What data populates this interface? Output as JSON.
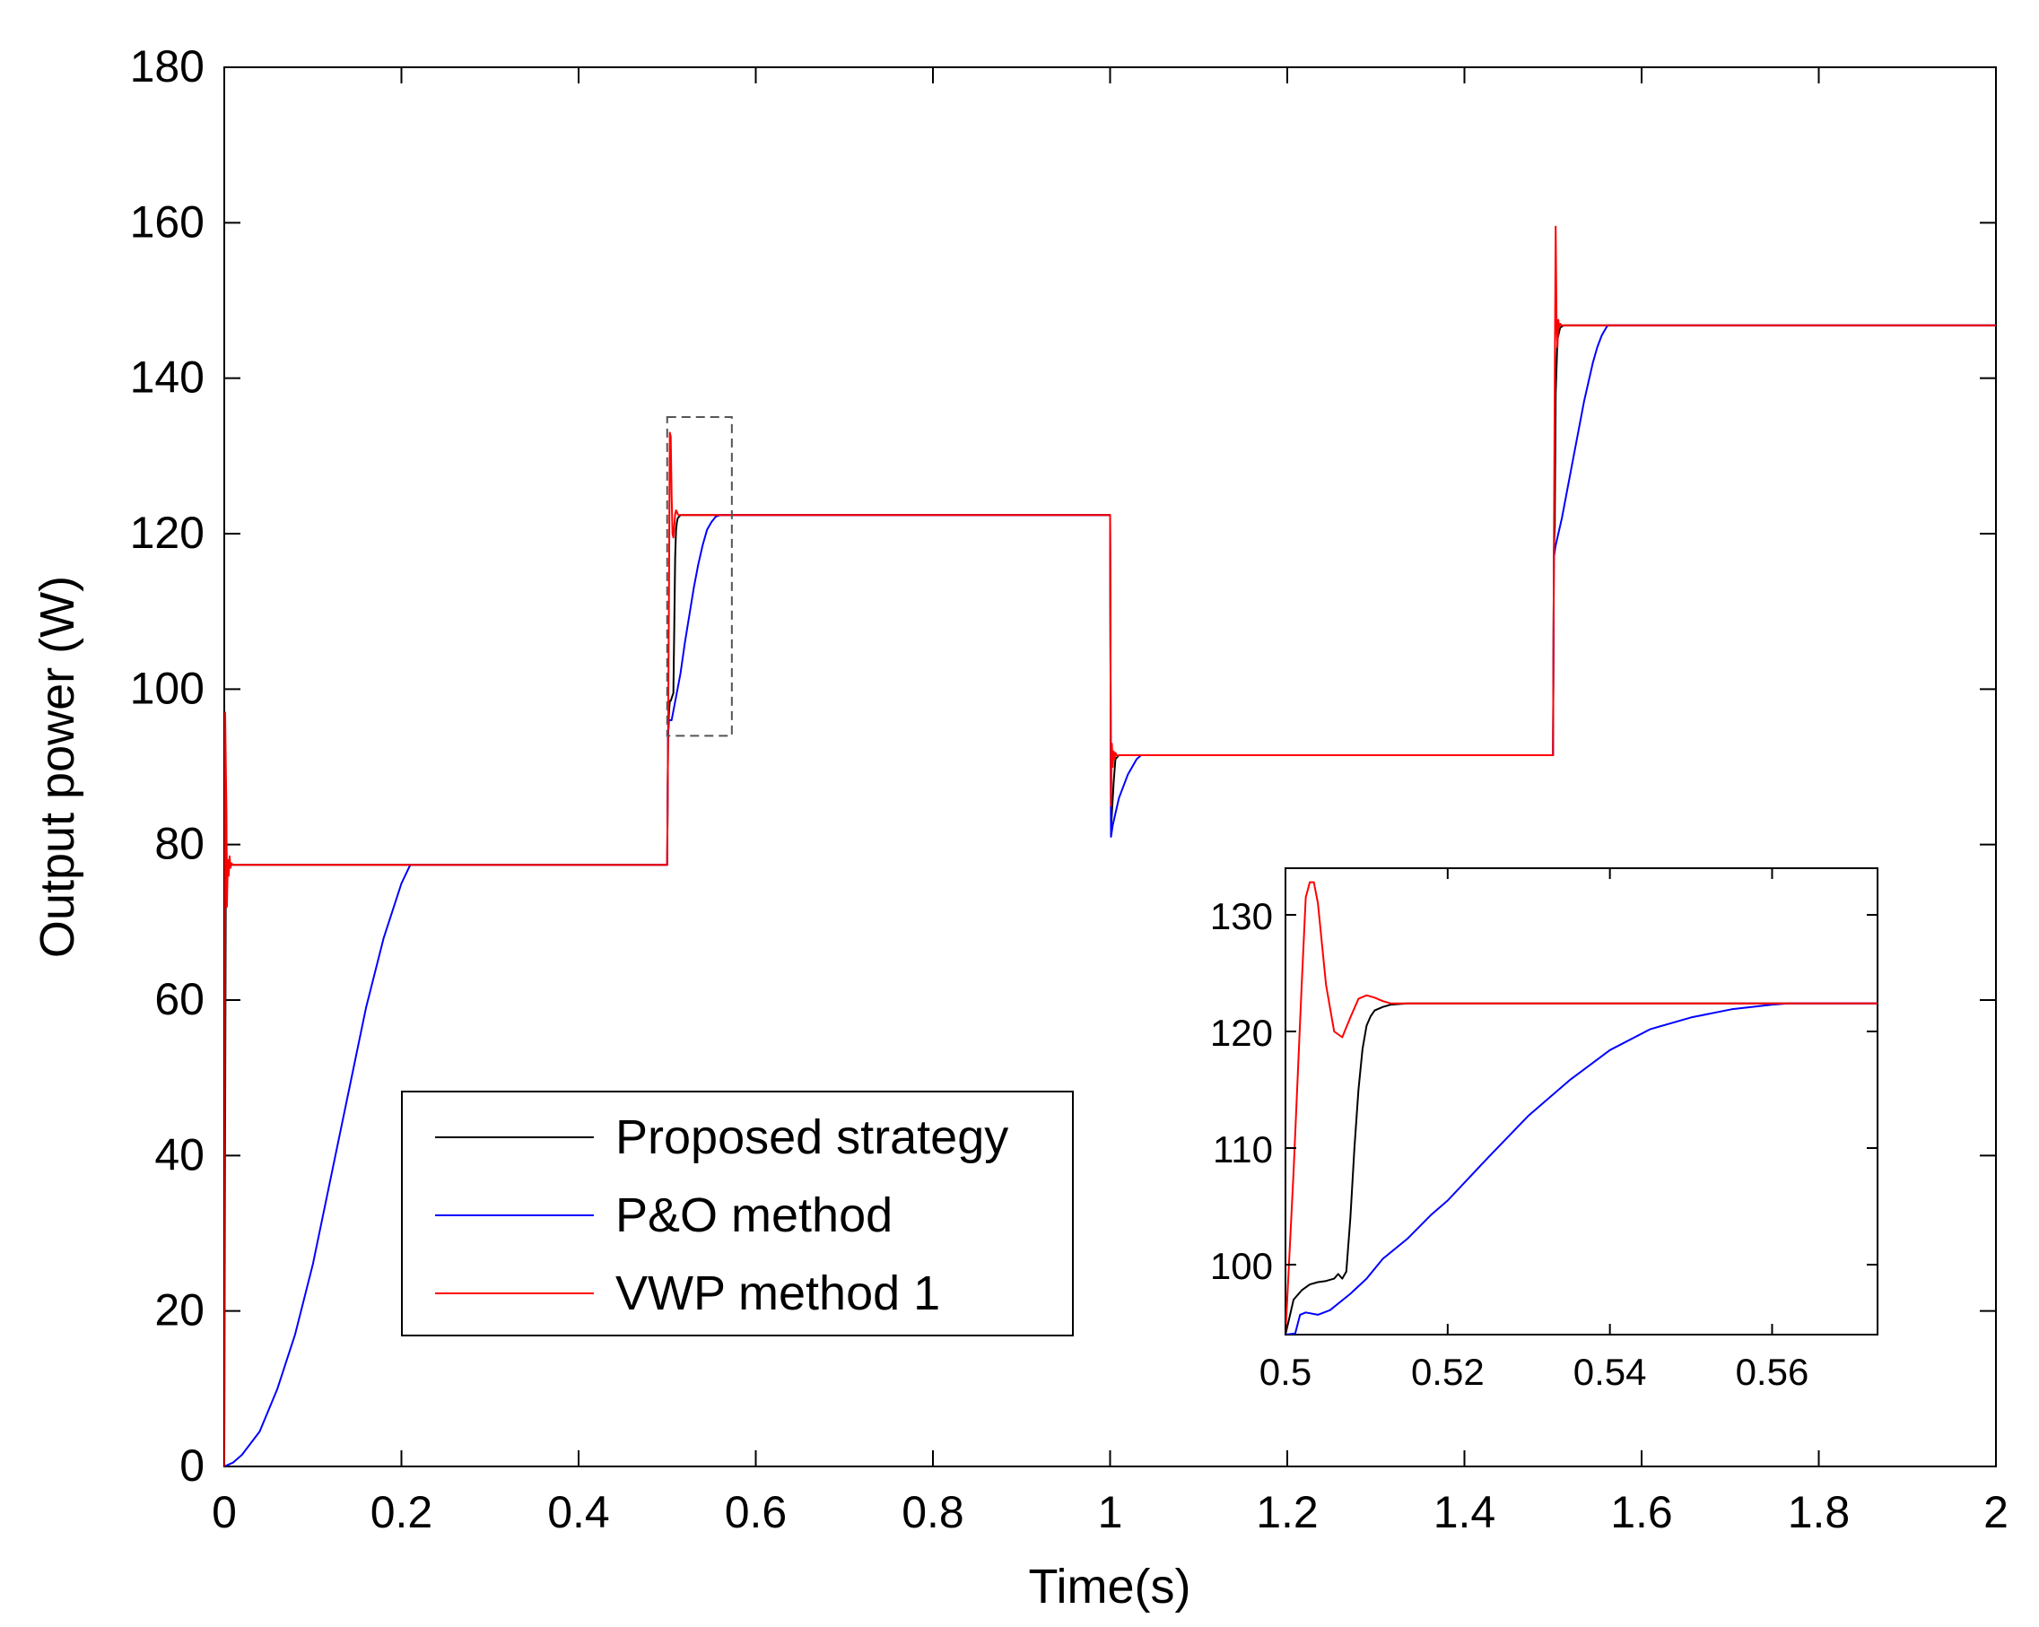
{
  "chart_data": {
    "type": "line",
    "title": "",
    "xlabel": "Time(s)",
    "ylabel": "Output power (W)",
    "xlim": [
      0,
      2
    ],
    "ylim": [
      0,
      180
    ],
    "xticks": [
      0,
      0.2,
      0.4,
      0.6,
      0.8,
      1,
      1.2,
      1.4,
      1.6,
      1.8,
      2
    ],
    "xtick_labels": [
      "0",
      "0.2",
      "0.4",
      "0.6",
      "0.8",
      "1",
      "1.2",
      "1.4",
      "1.6",
      "1.8",
      "2"
    ],
    "yticks": [
      0,
      20,
      40,
      60,
      80,
      100,
      120,
      140,
      160,
      180
    ],
    "ytick_labels": [
      "0",
      "20",
      "40",
      "60",
      "80",
      "100",
      "120",
      "140",
      "160",
      "180"
    ],
    "legend_position": "lower-left",
    "series": [
      {
        "name": "Proposed strategy",
        "color": "#000000",
        "x": [
          0,
          0.002,
          0.003,
          0.005,
          0.006,
          0.008,
          0.5,
          0.501,
          0.502,
          0.503,
          0.504,
          0.507,
          0.508,
          0.509,
          0.51,
          0.511,
          0.512,
          0.515,
          1.0,
          1.001,
          1.002,
          1.004,
          1.006,
          1.01,
          1.5,
          1.501,
          1.502,
          1.503,
          1.505,
          1.508,
          1.512,
          2.0
        ],
        "y": [
          0,
          88,
          75,
          78,
          77,
          77.4,
          77.4,
          94,
          97,
          98.5,
          98.5,
          99.5,
          108,
          117,
          120.5,
          121.5,
          122,
          122.4,
          122.4,
          82,
          84,
          88,
          91,
          91.5,
          91.5,
          118,
          121,
          138,
          145,
          146.5,
          146.8,
          146.8
        ]
      },
      {
        "name": "P&O method",
        "color": "#0000ff",
        "x": [
          0,
          0.01,
          0.02,
          0.04,
          0.06,
          0.08,
          0.1,
          0.12,
          0.14,
          0.16,
          0.18,
          0.2,
          0.21,
          0.5,
          0.501,
          0.502,
          0.505,
          0.51,
          0.515,
          0.52,
          0.525,
          0.53,
          0.535,
          0.54,
          0.545,
          0.55,
          0.555,
          0.56,
          0.562,
          1.0,
          1.001,
          1.003,
          1.006,
          1.01,
          1.015,
          1.02,
          1.025,
          1.03,
          1.035,
          1.5,
          1.501,
          1.503,
          1.506,
          1.51,
          1.515,
          1.52,
          1.525,
          1.53,
          1.535,
          1.54,
          1.545,
          1.55,
          1.555,
          1.56,
          1.562,
          2.0
        ],
        "y": [
          0,
          0.5,
          1.5,
          4.5,
          10,
          17,
          26,
          37,
          48,
          59,
          68,
          75,
          77.4,
          77.4,
          94,
          96,
          96,
          99,
          102,
          106,
          109.5,
          113,
          116,
          118.5,
          120.5,
          121.5,
          122.2,
          122.4,
          122.4,
          122.4,
          81,
          82.5,
          84,
          86,
          87.5,
          89,
          90,
          91,
          91.5,
          91.5,
          117,
          118.5,
          120,
          122,
          125,
          128,
          131,
          134,
          137,
          139.5,
          142,
          144,
          145.5,
          146.5,
          146.8,
          146.8
        ]
      },
      {
        "name": "VWP method 1",
        "color": "#ff0000",
        "x": [
          0,
          0.001,
          0.002,
          0.003,
          0.004,
          0.005,
          0.006,
          0.007,
          0.008,
          0.01,
          0.5,
          0.501,
          0.502,
          0.503,
          0.504,
          0.505,
          0.506,
          0.507,
          0.508,
          0.509,
          0.51,
          0.511,
          0.512,
          0.513,
          0.515,
          1.0,
          1.001,
          1.002,
          1.003,
          1.004,
          1.005,
          1.006,
          1.008,
          1.01,
          1.5,
          1.501,
          1.502,
          1.503,
          1.504,
          1.505,
          1.506,
          1.507,
          1.508,
          1.51,
          2.0
        ],
        "y": [
          0,
          97,
          88,
          72,
          78,
          76,
          78.5,
          77,
          77.6,
          77.4,
          77.4,
          94,
          112,
          133,
          132.5,
          125,
          120,
          119.5,
          121,
          122.5,
          123,
          122.8,
          122.5,
          122.4,
          122.4,
          122.4,
          85,
          93,
          90,
          92,
          91,
          91.8,
          91.4,
          91.5,
          91.5,
          118,
          140,
          159.5,
          147,
          144,
          147.5,
          146.5,
          147,
          146.8,
          146.8
        ]
      }
    ],
    "zoom_box": {
      "x_range": [
        0.5,
        0.573
      ],
      "y_range": [
        94,
        135
      ]
    },
    "inset": {
      "xlim": [
        0.5,
        0.573
      ],
      "ylim": [
        94,
        134
      ],
      "xticks": [
        0.5,
        0.52,
        0.54,
        0.56
      ],
      "xtick_labels": [
        "0.5",
        "0.52",
        "0.54",
        "0.56"
      ],
      "yticks": [
        100,
        110,
        120,
        130
      ],
      "ytick_labels": [
        "100",
        "110",
        "120",
        "130"
      ],
      "series": [
        {
          "name": "Proposed strategy",
          "color": "#000000",
          "x": [
            0.5,
            0.501,
            0.502,
            0.503,
            0.504,
            0.505,
            0.506,
            0.5065,
            0.507,
            0.5075,
            0.508,
            0.5085,
            0.509,
            0.5095,
            0.51,
            0.5105,
            0.511,
            0.512,
            0.513,
            0.515,
            0.573
          ],
          "y": [
            94,
            97,
            97.8,
            98.3,
            98.5,
            98.6,
            98.8,
            99.2,
            98.8,
            99.4,
            104,
            110,
            115,
            118.5,
            120.5,
            121.3,
            121.8,
            122.1,
            122.3,
            122.4,
            122.4
          ]
        },
        {
          "name": "P&O method",
          "color": "#0000ff",
          "x": [
            0.5,
            0.5012,
            0.5018,
            0.5025,
            0.504,
            0.5055,
            0.508,
            0.51,
            0.512,
            0.515,
            0.518,
            0.52,
            0.525,
            0.53,
            0.535,
            0.54,
            0.545,
            0.55,
            0.555,
            0.56,
            0.562,
            0.573
          ],
          "y": [
            94,
            94.1,
            95.7,
            95.9,
            95.7,
            96.1,
            97.5,
            98.8,
            100.5,
            102.2,
            104.3,
            105.5,
            109.2,
            112.8,
            115.8,
            118.4,
            120.2,
            121.2,
            121.9,
            122.3,
            122.4,
            122.4
          ]
        },
        {
          "name": "VWP method 1",
          "color": "#ff0000",
          "x": [
            0.5,
            0.501,
            0.502,
            0.5025,
            0.503,
            0.5035,
            0.504,
            0.505,
            0.506,
            0.507,
            0.508,
            0.509,
            0.51,
            0.511,
            0.512,
            0.513,
            0.573
          ],
          "y": [
            94,
            108,
            124,
            131.5,
            132.8,
            132.8,
            131,
            124,
            120,
            119.5,
            121.2,
            122.8,
            123.1,
            122.9,
            122.6,
            122.4,
            122.4
          ]
        }
      ]
    }
  }
}
